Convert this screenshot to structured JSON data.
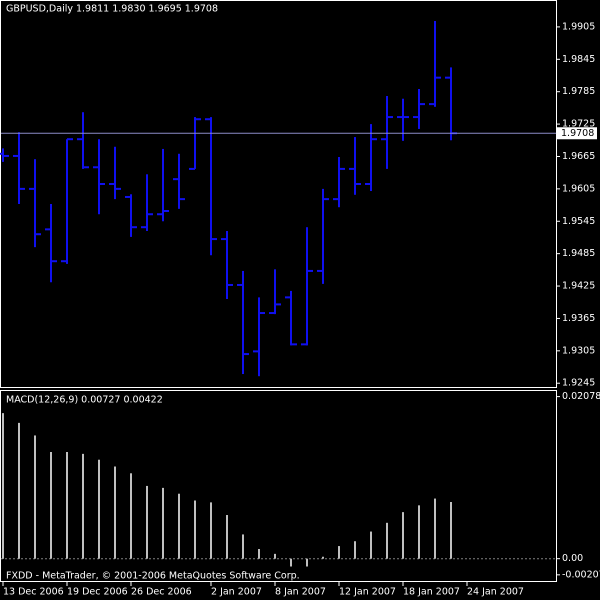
{
  "chart_data": [
    {
      "type": "ohlc",
      "title": "GBPUSD,Daily  1.9811 1.9830 1.9695 1.9708",
      "color": "#1010f0",
      "open": [
        1.967,
        1.9666,
        1.9605,
        1.953,
        1.9471,
        1.9697,
        1.9645,
        1.9614,
        1.959,
        1.9534,
        1.9558,
        1.9623,
        1.9642,
        1.9734,
        1.9512,
        1.9427,
        1.9304,
        1.9375,
        1.9404,
        1.9317,
        1.9453,
        1.9586,
        1.9642,
        1.9614,
        1.9697,
        1.9738,
        1.9738,
        1.9762,
        1.9811
      ],
      "high": [
        1.968,
        1.971,
        1.966,
        1.9577,
        1.9697,
        1.9747,
        1.9697,
        1.9683,
        1.9595,
        1.9632,
        1.9679,
        1.967,
        1.9738,
        1.9738,
        1.9527,
        1.9453,
        1.9404,
        1.9456,
        1.9416,
        1.9534,
        1.9605,
        1.9664,
        1.9701,
        1.9725,
        1.9777,
        1.9772,
        1.979,
        1.9916,
        1.983
      ],
      "low": [
        1.9655,
        1.9577,
        1.9497,
        1.9432,
        1.9466,
        1.9642,
        1.9558,
        1.9586,
        1.9516,
        1.9527,
        1.9545,
        1.9568,
        1.9642,
        1.9482,
        1.9401,
        1.9262,
        1.9258,
        1.9373,
        1.9315,
        1.9315,
        1.9429,
        1.9571,
        1.9594,
        1.9601,
        1.9642,
        1.9694,
        1.9716,
        1.9757,
        1.9695
      ],
      "close": [
        1.9666,
        1.9605,
        1.9521,
        1.9471,
        1.9697,
        1.9645,
        1.9614,
        1.9605,
        1.9534,
        1.9558,
        1.9564,
        1.9586,
        1.9734,
        1.9512,
        1.9427,
        1.9299,
        1.9375,
        1.9391,
        1.9317,
        1.9453,
        1.9586,
        1.9642,
        1.9614,
        1.9697,
        1.9738,
        1.9738,
        1.9762,
        1.9811,
        1.9708
      ],
      "current_price": 1.9708,
      "ylim": [
        1.9238,
        1.9953
      ],
      "yticks": [
        1.9905,
        1.9845,
        1.9785,
        1.9725,
        1.9665,
        1.9605,
        1.9545,
        1.9485,
        1.9425,
        1.9365,
        1.9305,
        1.9245
      ]
    },
    {
      "type": "bar",
      "title": "MACD(12,26,9) 0.00727 0.00422",
      "footer": "FXDD - MetaTrader, © 2001-2006 MetaQuotes Software Corp.",
      "color": "#c0c0c0",
      "categories": [
        "13 Dec 2006",
        null,
        null,
        null,
        "19 Dec 2006",
        null,
        null,
        null,
        "26 Dec 2006",
        null,
        null,
        null,
        null,
        "2 Jan 2007",
        null,
        null,
        null,
        "8 Jan 2007",
        null,
        null,
        null,
        "12 Jan 2007",
        null,
        null,
        null,
        "18 Jan 2007",
        null,
        null,
        null,
        "24 Jan 2007"
      ],
      "values": [
        0.01866,
        0.01742,
        0.0158,
        0.01368,
        0.01368,
        0.01344,
        0.01269,
        0.01182,
        0.01095,
        0.00933,
        0.00908,
        0.00833,
        0.00746,
        0.00722,
        0.0056,
        0.00311,
        0.00124,
        0.00062,
        -0.001,
        -0.001,
        0.00025,
        0.00162,
        0.00224,
        0.00348,
        0.0046,
        0.00597,
        0.00684,
        0.00771,
        0.00727,
        null
      ],
      "ylim": [
        -0.00286,
        0.0215
      ],
      "yticks": [
        0.02078,
        {
          "value": 0,
          "label": "0.00"
        },
        -0.00207
      ]
    }
  ]
}
